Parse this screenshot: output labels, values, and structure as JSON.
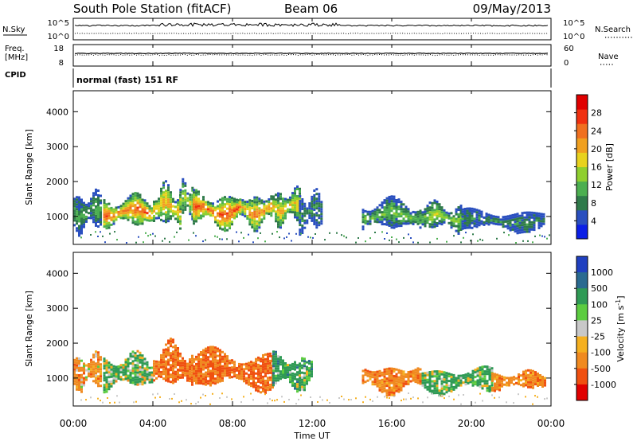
{
  "header": {
    "title": "South Pole Station (fitACF)",
    "beam": "Beam 06",
    "date": "09/May/2013"
  },
  "panels": {
    "nsky_label": "N.Sky",
    "nsky_top_tick": "10^5",
    "nsky_bottom_tick": "10^0",
    "nsearch_label": "N.Search",
    "nsearch_top_tick": "10^5",
    "nsearch_bottom_tick": "10^0",
    "freq_label_line1": "Freq.",
    "freq_label_line2": "[MHz]",
    "freq_top_tick": "18",
    "freq_bottom_tick": "8",
    "nave_label": "Nave",
    "nave_top_tick": "60",
    "nave_bottom_tick": "0",
    "cpid_label": "CPID",
    "cpid_text": "normal (fast) 151 RF"
  },
  "colors": {
    "power_scale": [
      "#0b1fe6",
      "#2a4fbf",
      "#2f7a4a",
      "#4caf50",
      "#8fcf2f",
      "#e8d21e",
      "#f0a020",
      "#f07020",
      "#f03010",
      "#e00000"
    ],
    "velocity_scale": [
      "#e00000",
      "#f05010",
      "#f08a20",
      "#f5b020",
      "#c8c8c8",
      "#5ccc40",
      "#2f9a55",
      "#2a6a90",
      "#2040c0"
    ]
  },
  "chart_data": [
    {
      "type": "heatmap",
      "title": "Power",
      "xlabel": "",
      "ylabel": "Slant Range [km]",
      "x_ticks": [
        "00:00",
        "04:00",
        "08:00",
        "12:00",
        "16:00",
        "20:00",
        "00:00"
      ],
      "y_ticks": [
        1000,
        2000,
        3000,
        4000
      ],
      "ylim": [
        200,
        4600
      ],
      "colorbar": {
        "label": "Power [dB]",
        "ticks": [
          4,
          8,
          12,
          16,
          20,
          24,
          28
        ]
      },
      "regions": [
        {
          "t_start": "00:00",
          "t_end": "01:20",
          "range_km": [
            600,
            1700
          ],
          "value_db": 10
        },
        {
          "t_start": "01:30",
          "t_end": "04:00",
          "range_km": [
            700,
            1600
          ],
          "value_db": 26
        },
        {
          "t_start": "04:00",
          "t_end": "05:20",
          "range_km": [
            700,
            1900
          ],
          "value_db": 22
        },
        {
          "t_start": "05:20",
          "t_end": "06:00",
          "range_km": [
            1000,
            2000
          ],
          "value_db": 16
        },
        {
          "t_start": "06:00",
          "t_end": "08:20",
          "range_km": [
            700,
            1700
          ],
          "value_db": 27
        },
        {
          "t_start": "08:20",
          "t_end": "10:00",
          "range_km": [
            700,
            1700
          ],
          "value_db": 24
        },
        {
          "t_start": "10:00",
          "t_end": "11:20",
          "range_km": [
            800,
            1800
          ],
          "value_db": 20
        },
        {
          "t_start": "11:20",
          "t_end": "12:30",
          "range_km": [
            600,
            1700
          ],
          "value_db": 8
        },
        {
          "t_start": "14:30",
          "t_end": "17:30",
          "range_km": [
            600,
            1500
          ],
          "value_db": 12
        },
        {
          "t_start": "17:30",
          "t_end": "19:30",
          "range_km": [
            600,
            1400
          ],
          "value_db": 14
        },
        {
          "t_start": "19:30",
          "t_end": "23:40",
          "range_km": [
            600,
            1200
          ],
          "value_db": 8
        }
      ]
    },
    {
      "type": "heatmap",
      "title": "Velocity",
      "xlabel": "Time UT",
      "ylabel": "Slant Range [km]",
      "x_ticks": [
        "00:00",
        "04:00",
        "08:00",
        "12:00",
        "16:00",
        "20:00",
        "00:00"
      ],
      "y_ticks": [
        1000,
        2000,
        3000,
        4000
      ],
      "ylim": [
        200,
        4600
      ],
      "colorbar": {
        "label": "Velocity [m s-1]",
        "ticks": [
          1000,
          500,
          100,
          25,
          -25,
          -100,
          -500,
          -1000
        ]
      },
      "regions": [
        {
          "t_start": "00:00",
          "t_end": "01:20",
          "range_km": [
            700,
            1700
          ],
          "value_ms": -150
        },
        {
          "t_start": "01:30",
          "t_end": "04:00",
          "range_km": [
            700,
            1700
          ],
          "value_ms": 100
        },
        {
          "t_start": "04:00",
          "t_end": "06:00",
          "range_km": [
            700,
            2000
          ],
          "value_ms": -300
        },
        {
          "t_start": "06:00",
          "t_end": "10:00",
          "range_km": [
            700,
            1800
          ],
          "value_ms": -300
        },
        {
          "t_start": "10:00",
          "t_end": "12:00",
          "range_km": [
            700,
            1700
          ],
          "value_ms": 150
        },
        {
          "t_start": "14:30",
          "t_end": "17:30",
          "range_km": [
            600,
            1400
          ],
          "value_ms": -200
        },
        {
          "t_start": "17:30",
          "t_end": "21:00",
          "range_km": [
            600,
            1300
          ],
          "value_ms": 120
        },
        {
          "t_start": "21:00",
          "t_end": "23:40",
          "range_km": [
            700,
            1200
          ],
          "value_ms": -200
        }
      ]
    }
  ]
}
